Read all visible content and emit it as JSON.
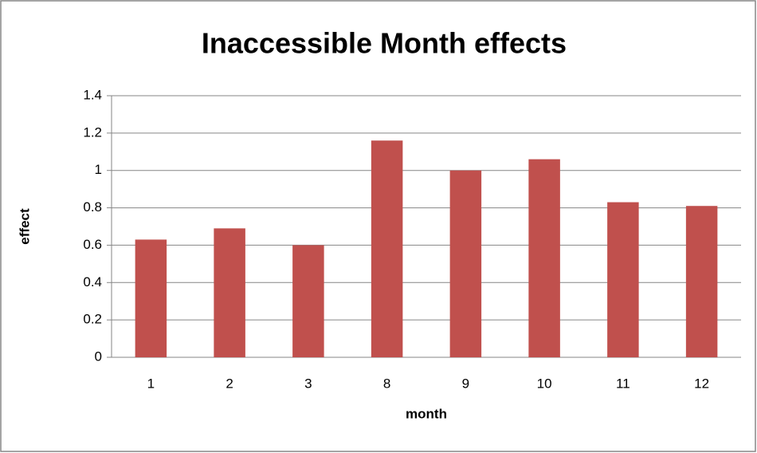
{
  "chart_data": {
    "type": "bar",
    "title": "Inaccessible Month effects",
    "x_label": "month",
    "y_label": "effect",
    "categories": [
      "1",
      "2",
      "3",
      "8",
      "9",
      "10",
      "11",
      "12"
    ],
    "values": [
      0.63,
      0.69,
      0.6,
      1.16,
      1.0,
      1.06,
      0.83,
      0.81
    ],
    "color": "#c0504d",
    "ylim": [
      0,
      1.4
    ],
    "yticks": [
      0,
      0.2,
      0.4,
      0.6,
      0.8,
      1,
      1.2,
      1.4
    ],
    "grid": true
  }
}
